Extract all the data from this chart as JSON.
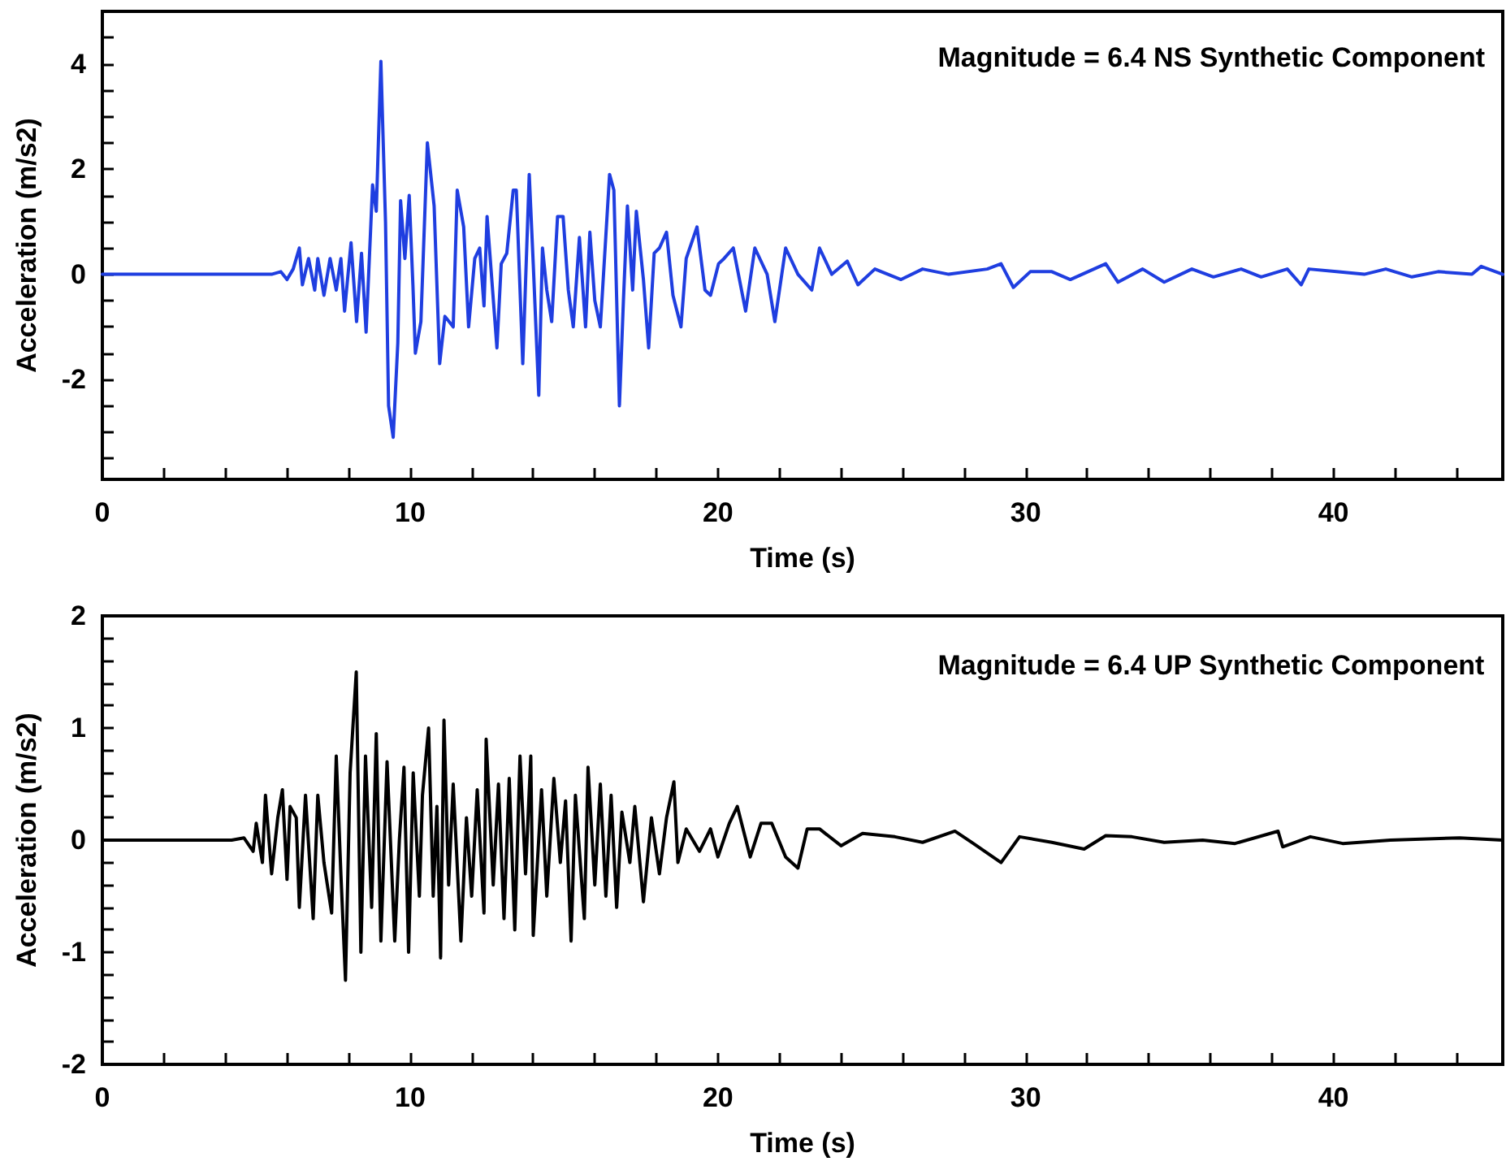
{
  "chart_data": [
    {
      "type": "line",
      "title": "Magnitude = 6.4 NS Synthetic Component",
      "xlabel": "Time (s)",
      "ylabel": "Acceleration (m/s2)",
      "x": [
        0,
        5.5,
        5.8,
        6.0,
        6.2,
        6.4,
        6.5,
        6.7,
        6.9,
        7.0,
        7.2,
        7.4,
        7.6,
        7.75,
        7.87,
        8.08,
        8.26,
        8.42,
        8.57,
        8.78,
        8.9,
        9.05,
        9.2,
        9.3,
        9.45,
        9.6,
        9.69,
        9.83,
        9.97,
        10.09,
        10.17,
        10.35,
        10.56,
        10.78,
        10.96,
        11.13,
        11.4,
        11.53,
        11.74,
        11.9,
        12.1,
        12.26,
        12.4,
        12.5,
        12.82,
        12.96,
        13.14,
        13.35,
        13.45,
        13.66,
        13.87,
        14.0,
        14.18,
        14.3,
        14.44,
        14.6,
        14.79,
        14.97,
        15.14,
        15.3,
        15.5,
        15.7,
        15.84,
        16.0,
        16.18,
        16.48,
        16.62,
        16.8,
        16.93,
        17.06,
        17.23,
        17.35,
        17.58,
        17.75,
        17.93,
        18.1,
        18.33,
        18.54,
        18.8,
        18.97,
        19.32,
        19.58,
        19.76,
        20.02,
        20.2,
        20.5,
        20.9,
        21.2,
        21.6,
        21.85,
        22.2,
        22.6,
        23.05,
        23.3,
        23.7,
        24.2,
        24.55,
        25.1,
        25.95,
        26.65,
        27.5,
        28.75,
        29.2,
        29.6,
        30.15,
        30.85,
        31.45,
        32.6,
        33.0,
        33.8,
        34.5,
        35.4,
        36.1,
        37.0,
        37.65,
        38.5,
        38.95,
        39.2,
        40.1,
        41.0,
        41.7,
        42.55,
        43.4,
        44.5,
        44.8,
        45.5
      ],
      "series": [
        {
          "color": "#1f3ee0",
          "values": [
            0,
            0,
            0.05,
            -0.1,
            0.1,
            0.5,
            -0.2,
            0.3,
            -0.3,
            0.3,
            -0.4,
            0.3,
            -0.3,
            0.3,
            -0.7,
            0.6,
            -0.9,
            0.4,
            -1.1,
            1.7,
            1.2,
            4.05,
            1.0,
            -2.5,
            -3.1,
            -1.3,
            1.4,
            0.3,
            1.5,
            -0.2,
            -1.5,
            -0.9,
            2.5,
            1.3,
            -1.7,
            -0.8,
            -1.0,
            1.6,
            0.9,
            -1.0,
            0.3,
            0.5,
            -0.6,
            1.1,
            -1.4,
            0.2,
            0.4,
            1.6,
            1.6,
            -1.7,
            1.9,
            0.2,
            -2.3,
            0.5,
            -0.3,
            -0.9,
            1.1,
            1.1,
            -0.3,
            -1.0,
            0.7,
            -1.0,
            0.8,
            -0.5,
            -1.0,
            1.9,
            1.6,
            -2.5,
            -0.5,
            1.3,
            -0.3,
            1.2,
            -0.1,
            -1.4,
            0.4,
            0.5,
            0.8,
            -0.4,
            -1.0,
            0.3,
            0.9,
            -0.3,
            -0.4,
            0.2,
            0.3,
            0.5,
            -0.7,
            0.5,
            0.0,
            -0.9,
            0.5,
            0.0,
            -0.3,
            0.5,
            0.0,
            0.25,
            -0.2,
            0.1,
            -0.1,
            0.1,
            0.0,
            0.1,
            0.2,
            -0.25,
            0.05,
            0.05,
            -0.1,
            0.2,
            -0.15,
            0.1,
            -0.15,
            0.1,
            -0.05,
            0.1,
            -0.05,
            0.1,
            -0.2,
            0.1,
            0.05,
            0.0,
            0.1,
            -0.05,
            0.05,
            0.0,
            0.15,
            0.0
          ]
        }
      ],
      "xlim": [
        0,
        45.5
      ],
      "ylim": [
        -3.9,
        5
      ],
      "xticks": [
        0,
        {
          "value": 2,
          "label": null
        },
        {
          "value": 4,
          "label": null
        },
        {
          "value": 6,
          "label": null
        },
        {
          "value": 8,
          "label": null
        },
        10,
        {
          "value": 12,
          "label": null
        },
        {
          "value": 14,
          "label": null
        },
        {
          "value": 16,
          "label": null
        },
        {
          "value": 18,
          "label": null
        },
        20,
        {
          "value": 22,
          "label": null
        },
        {
          "value": 24,
          "label": null
        },
        {
          "value": 26,
          "label": null
        },
        {
          "value": 28,
          "label": null
        },
        30,
        {
          "value": 32,
          "label": null
        },
        {
          "value": 34,
          "label": null
        },
        {
          "value": 36,
          "label": null
        },
        {
          "value": 38,
          "label": null
        },
        40,
        {
          "value": 42,
          "label": null
        },
        {
          "value": 44,
          "label": null
        }
      ],
      "yticks": [
        {
          "value": -3.5,
          "label": null
        },
        {
          "value": -3,
          "label": null
        },
        {
          "value": -2.5,
          "label": null
        },
        -2,
        {
          "value": -1.5,
          "label": null
        },
        {
          "value": -1,
          "label": null
        },
        {
          "value": -0.5,
          "label": null
        },
        0,
        {
          "value": 0.5,
          "label": null
        },
        {
          "value": 1,
          "label": null
        },
        {
          "value": 1.5,
          "label": null
        },
        2,
        {
          "value": 2.5,
          "label": null
        },
        {
          "value": 3,
          "label": null
        },
        {
          "value": 3.5,
          "label": null
        },
        4,
        {
          "value": 4.5,
          "label": null
        }
      ],
      "grid": false,
      "marker": "none",
      "line_style": "solid"
    },
    {
      "type": "line",
      "title": "Magnitude = 6.4 UP Synthetic Component",
      "xlabel": "Time (s)",
      "ylabel": "Acceleration (m/s2)",
      "x": [
        0,
        4.2,
        4.6,
        4.9,
        5.0,
        5.2,
        5.3,
        5.5,
        5.7,
        5.85,
        6.0,
        6.1,
        6.3,
        6.4,
        6.6,
        6.85,
        7.0,
        7.2,
        7.45,
        7.6,
        7.75,
        7.9,
        8.05,
        8.25,
        8.4,
        8.55,
        8.75,
        8.9,
        9.05,
        9.25,
        9.5,
        9.65,
        9.8,
        9.95,
        10.1,
        10.3,
        10.4,
        10.6,
        10.75,
        10.87,
        10.99,
        11.1,
        11.25,
        11.4,
        11.65,
        11.83,
        12.0,
        12.18,
        12.4,
        12.47,
        12.7,
        12.87,
        13.05,
        13.22,
        13.4,
        13.57,
        13.75,
        13.92,
        14.0,
        14.27,
        14.44,
        14.67,
        14.88,
        15.05,
        15.23,
        15.37,
        15.66,
        15.78,
        16.0,
        16.18,
        16.36,
        16.53,
        16.71,
        16.88,
        17.14,
        17.3,
        17.58,
        17.84,
        18.1,
        18.33,
        18.57,
        18.7,
        18.97,
        19.4,
        19.76,
        20.0,
        20.37,
        20.63,
        21.05,
        21.4,
        21.75,
        22.2,
        22.6,
        22.9,
        23.3,
        24.0,
        24.7,
        25.75,
        26.65,
        27.7,
        28.3,
        29.2,
        29.8,
        30.85,
        31.9,
        32.6,
        33.45,
        34.5,
        35.75,
        36.8,
        38.2,
        38.35,
        39.25,
        40.3,
        41.85,
        44.1,
        45.5
      ],
      "series": [
        {
          "color": "#000000",
          "values": [
            0,
            0,
            0.02,
            -0.1,
            0.15,
            -0.2,
            0.4,
            -0.3,
            0.2,
            0.45,
            -0.35,
            0.3,
            0.2,
            -0.6,
            0.4,
            -0.7,
            0.4,
            -0.2,
            -0.65,
            0.75,
            -0.3,
            -1.25,
            0.6,
            1.5,
            -1.0,
            0.75,
            -0.6,
            0.95,
            -0.9,
            0.7,
            -0.9,
            0.0,
            0.65,
            -1.0,
            0.6,
            -0.5,
            0.4,
            1.0,
            -0.5,
            0.3,
            -1.05,
            1.07,
            -0.4,
            0.5,
            -0.9,
            0.2,
            -0.5,
            0.45,
            -0.65,
            0.9,
            -0.4,
            0.5,
            -0.7,
            0.55,
            -0.8,
            0.75,
            -0.3,
            0.75,
            -0.85,
            0.45,
            -0.5,
            0.55,
            -0.2,
            0.35,
            -0.9,
            0.4,
            -0.7,
            0.65,
            -0.4,
            0.5,
            -0.5,
            0.4,
            -0.6,
            0.25,
            -0.2,
            0.3,
            -0.55,
            0.2,
            -0.3,
            0.2,
            0.52,
            -0.2,
            0.1,
            -0.1,
            0.1,
            -0.15,
            0.15,
            0.3,
            -0.15,
            0.15,
            0.15,
            -0.15,
            -0.25,
            0.1,
            0.1,
            -0.05,
            0.06,
            0.03,
            -0.02,
            0.08,
            -0.03,
            -0.2,
            0.03,
            -0.02,
            -0.08,
            0.04,
            0.03,
            -0.02,
            0.0,
            -0.03,
            0.08,
            -0.06,
            0.03,
            -0.03,
            0.0,
            0.02,
            0.0
          ]
        }
      ],
      "xlim": [
        0,
        45.5
      ],
      "ylim": [
        -2,
        2
      ],
      "xticks": [
        0,
        {
          "value": 2,
          "label": null
        },
        {
          "value": 4,
          "label": null
        },
        {
          "value": 6,
          "label": null
        },
        {
          "value": 8,
          "label": null
        },
        10,
        {
          "value": 12,
          "label": null
        },
        {
          "value": 14,
          "label": null
        },
        {
          "value": 16,
          "label": null
        },
        {
          "value": 18,
          "label": null
        },
        20,
        {
          "value": 22,
          "label": null
        },
        {
          "value": 24,
          "label": null
        },
        {
          "value": 26,
          "label": null
        },
        {
          "value": 28,
          "label": null
        },
        30,
        {
          "value": 32,
          "label": null
        },
        {
          "value": 34,
          "label": null
        },
        {
          "value": 36,
          "label": null
        },
        {
          "value": 38,
          "label": null
        },
        40,
        {
          "value": 42,
          "label": null
        },
        {
          "value": 44,
          "label": null
        }
      ],
      "yticks": [
        -2,
        {
          "value": -1.8,
          "label": null
        },
        {
          "value": -1.6,
          "label": null
        },
        {
          "value": -1.4,
          "label": null
        },
        {
          "value": -1.2,
          "label": null
        },
        -1,
        {
          "value": -0.8,
          "label": null
        },
        {
          "value": -0.6,
          "label": null
        },
        {
          "value": -0.4,
          "label": null
        },
        {
          "value": -0.2,
          "label": null
        },
        0,
        {
          "value": 0.2,
          "label": null
        },
        {
          "value": 0.4,
          "label": null
        },
        {
          "value": 0.6,
          "label": null
        },
        {
          "value": 0.8,
          "label": null
        },
        1,
        {
          "value": 1.2,
          "label": null
        },
        {
          "value": 1.4,
          "label": null
        },
        {
          "value": 1.6,
          "label": null
        },
        {
          "value": 1.8,
          "label": null
        },
        2
      ],
      "grid": false,
      "marker": "none",
      "line_style": "solid"
    }
  ]
}
